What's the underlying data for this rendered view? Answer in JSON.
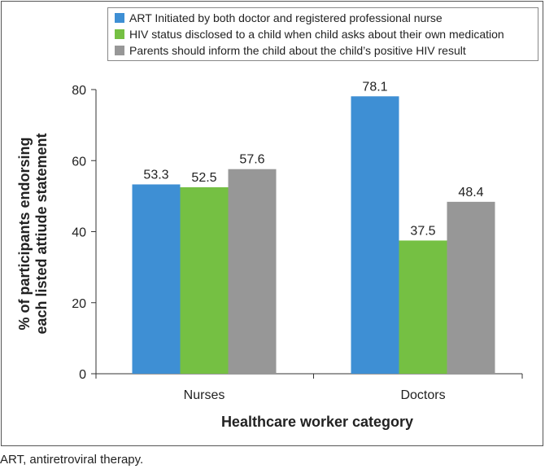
{
  "chart_data": {
    "type": "bar",
    "categories": [
      "Nurses",
      "Doctors"
    ],
    "series": [
      {
        "name": "ART Initiated by both doctor and registered professional nurse",
        "color": "#3e8fd4",
        "values": [
          53.3,
          78.1
        ],
        "labels": [
          "53.3",
          "78.1"
        ]
      },
      {
        "name": "HIV status disclosed to a child when child asks about their own medication",
        "color": "#75c043",
        "values": [
          52.5,
          37.5
        ],
        "labels": [
          "52.5",
          "37.5"
        ]
      },
      {
        "name": "Parents should inform the child about the child’s positive HIV result",
        "color": "#979797",
        "values": [
          57.6,
          48.4
        ],
        "labels": [
          "57.6",
          "48.4"
        ]
      }
    ],
    "ylim": [
      0,
      80
    ],
    "yticks": [
      0,
      20,
      40,
      60,
      80
    ],
    "ytick_labels": [
      "0",
      "20",
      "40",
      "60",
      "80"
    ],
    "ylabel_line1": "% of participants endorsing",
    "ylabel_line2": "each listed attiude statement",
    "xlabel": "Healthcare worker category",
    "legend_position": "top-right"
  },
  "caption": "ART, antiretroviral therapy."
}
